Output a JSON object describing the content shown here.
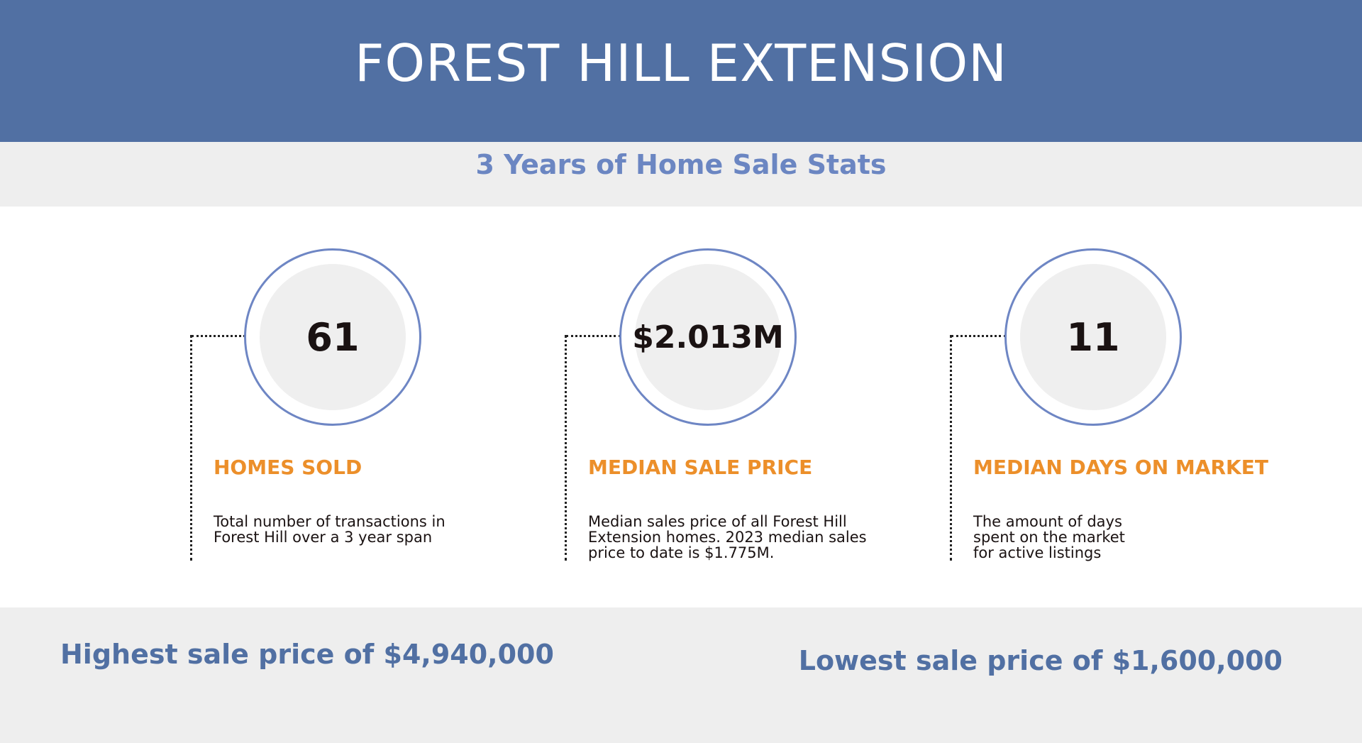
{
  "header": {
    "title": "FOREST HILL EXTENSION"
  },
  "subheader": {
    "title": "3 Years of Home Sale Stats"
  },
  "stats": [
    {
      "value": "61",
      "label": "HOMES SOLD",
      "description": "Total number of transactions in Forest Hill over a 3 year span"
    },
    {
      "value": "$2.013M",
      "label": "MEDIAN SALE PRICE",
      "description": "Median sales price of all Forest Hill Extension homes. 2023 median sales price to date is $1.775M."
    },
    {
      "value": "11",
      "label": "MEDIAN DAYS ON MARKET",
      "description": "The amount of days spent on the market for active listings"
    }
  ],
  "footer": {
    "highest": "Highest sale price of $4,940,000",
    "lowest": "Lowest sale price of $1,600,000"
  },
  "colors": {
    "header_bg": "#5170a3",
    "accent_blue": "#6b86c2",
    "label_orange": "#ec8f2a",
    "band_gray": "#eeeeee"
  }
}
